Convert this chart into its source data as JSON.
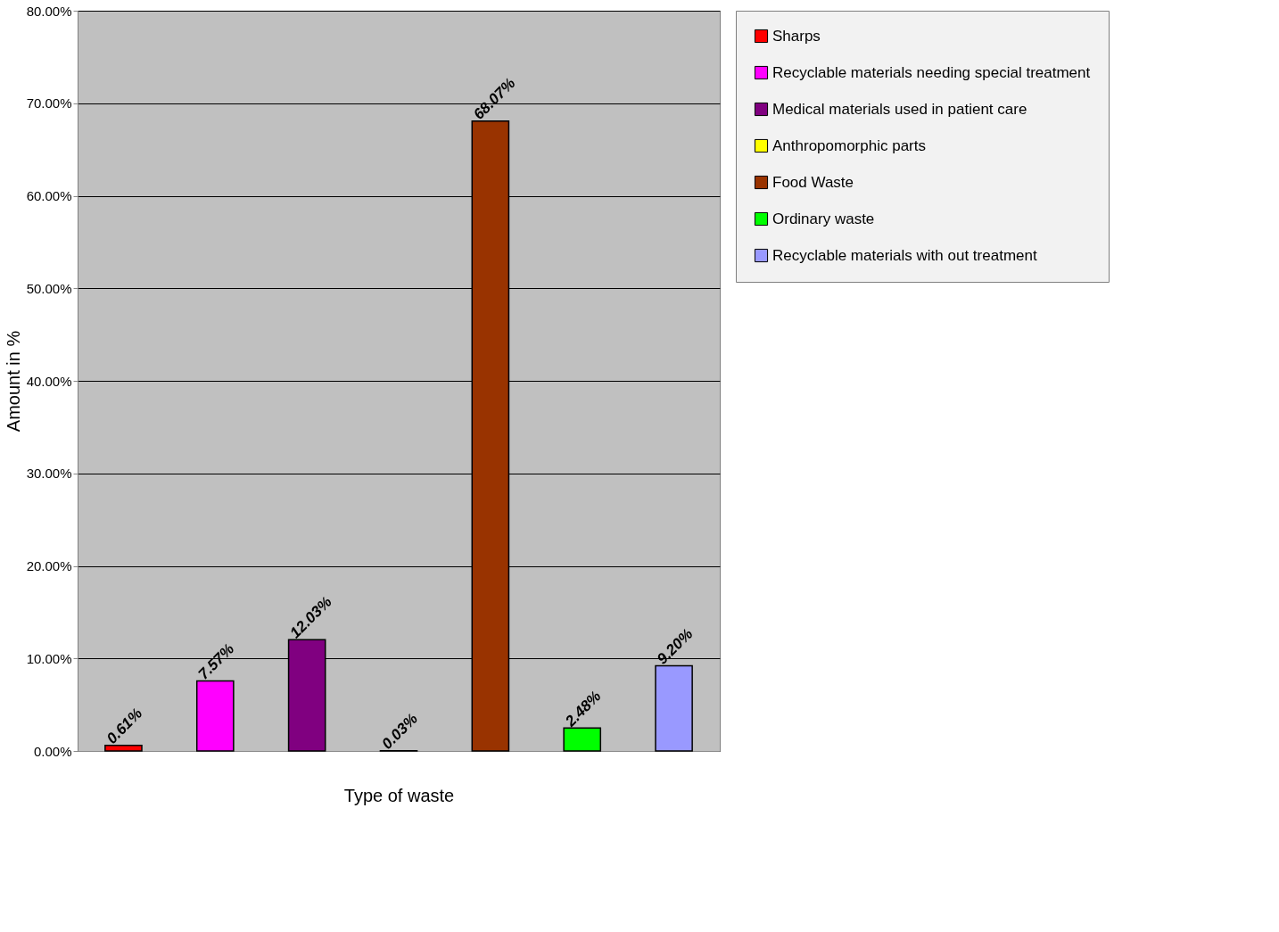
{
  "chart_data": {
    "type": "bar",
    "xlabel": "Type of waste",
    "ylabel": "Amount in %",
    "categories": [
      null,
      null,
      null,
      null,
      null,
      null,
      null
    ],
    "series": [
      {
        "name": "Sharps",
        "color": "#ff0000",
        "values": [
          0.61,
          null,
          null,
          null,
          null,
          null,
          null
        ],
        "value_labels": [
          "0.61%",
          null,
          null,
          null,
          null,
          null,
          null
        ]
      },
      {
        "name": "Recyclable materials needing special treatment",
        "color": "#ff00ff",
        "values": [
          null,
          7.57,
          null,
          null,
          null,
          null,
          null
        ],
        "value_labels": [
          null,
          "7.57%",
          null,
          null,
          null,
          null,
          null
        ]
      },
      {
        "name": "Medical materials used in patient care",
        "color": "#800080",
        "values": [
          null,
          null,
          12.03,
          null,
          null,
          null,
          null
        ],
        "value_labels": [
          null,
          null,
          "12.03%",
          null,
          null,
          null,
          null
        ]
      },
      {
        "name": "Anthropomorphic parts",
        "color": "#ffff00",
        "values": [
          null,
          null,
          null,
          0.03,
          null,
          null,
          null
        ],
        "value_labels": [
          null,
          null,
          null,
          "0.03%",
          null,
          null,
          null
        ]
      },
      {
        "name": "Food Waste",
        "color": "#993300",
        "values": [
          null,
          null,
          null,
          null,
          68.07,
          null,
          null
        ],
        "value_labels": [
          null,
          null,
          null,
          null,
          "68.07%",
          null,
          null
        ]
      },
      {
        "name": "Ordinary waste",
        "color": "#00ff00",
        "values": [
          null,
          null,
          null,
          null,
          null,
          2.48,
          null
        ],
        "value_labels": [
          null,
          null,
          null,
          null,
          null,
          "2.48%",
          null
        ]
      },
      {
        "name": "Recyclable materials with out treatment",
        "color": "#9999ff",
        "values": [
          null,
          null,
          null,
          null,
          null,
          null,
          9.2
        ],
        "value_labels": [
          null,
          null,
          null,
          null,
          null,
          null,
          "9.20%"
        ]
      }
    ],
    "ylim": [
      0,
      80
    ],
    "yticks": [
      {
        "value": 0,
        "label": "0.00%"
      },
      {
        "value": 10,
        "label": "10.00%"
      },
      {
        "value": 20,
        "label": "20.00%"
      },
      {
        "value": 30,
        "label": "30.00%"
      },
      {
        "value": 40,
        "label": "40.00%"
      },
      {
        "value": 50,
        "label": "50.00%"
      },
      {
        "value": 60,
        "label": "60.00%"
      },
      {
        "value": 70,
        "label": "70.00%"
      },
      {
        "value": 80,
        "label": "80.00%"
      }
    ],
    "grid": "y",
    "legend": "right",
    "tick_labels": "y"
  }
}
